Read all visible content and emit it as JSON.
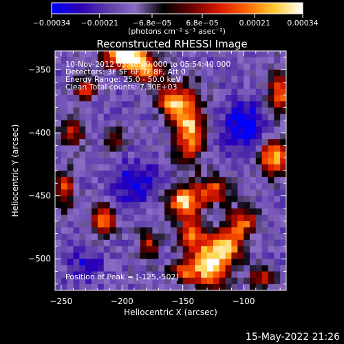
{
  "chart_data": {
    "type": "heatmap",
    "title": "Reconstructed RHESSI Image",
    "xlabel": "Heliocentric X (arcsec)",
    "ylabel": "Heliocentric Y (arcsec)",
    "xlim": [
      -255,
      -65
    ],
    "ylim": [
      -525,
      -335
    ],
    "x_ticks": [
      -250,
      -200,
      -150,
      -100
    ],
    "y_ticks": [
      -350,
      -400,
      -450,
      -500
    ],
    "x_tick_labels": [
      "−250",
      "−200",
      "−150",
      "−100"
    ],
    "y_tick_labels": [
      "−350",
      "−400",
      "−450",
      "−500"
    ],
    "colorbar": {
      "range": [
        -0.00034,
        0.00034
      ],
      "tick_values": [
        -0.00034,
        -0.00021,
        -6.8e-05,
        6.8e-05,
        0.00021,
        0.00034
      ],
      "tick_labels": [
        "−0.00034",
        "−0.00021",
        "−6.8e−05",
        "6.8e−05",
        "0.00021",
        "0.00034"
      ],
      "unit_label": "(photons cm⁻² s⁻¹ asec⁻²)",
      "stops": [
        "#0000ff",
        "#2a00b4",
        "#5a3aa8",
        "#8a6cc4",
        "#000000",
        "#6a0000",
        "#d81800",
        "#ff6600",
        "#ffcc33",
        "#ffffff"
      ]
    },
    "annotations": [
      "10-Nov-2012 05:48:40.000 to 05:54:40.000",
      "Detectors: 3F 5F 6F 7F 8F, Att 0",
      "Energy Range: 25.0 - 50.0 keV",
      "Clean     Total counts: 7.30E+03"
    ],
    "peak_label": "Position of Peak = [-125,-502]",
    "peak_position": [
      -125,
      -502
    ],
    "image": {
      "cols": 38,
      "rows": 38,
      "background": -0.00015,
      "sources": [
        {
          "x": -128,
          "y": -505,
          "sx": 10,
          "sy": 12,
          "amp": 0.00052
        },
        {
          "x": -112,
          "y": -488,
          "sx": 9,
          "sy": 10,
          "amp": 0.00035
        },
        {
          "x": -142,
          "y": -480,
          "sx": 8,
          "sy": 10,
          "amp": 0.0003
        },
        {
          "x": -150,
          "y": -455,
          "sx": 9,
          "sy": 8,
          "amp": 0.00045
        },
        {
          "x": -125,
          "y": -445,
          "sx": 10,
          "sy": 8,
          "amp": 0.0003
        },
        {
          "x": -145,
          "y": -395,
          "sx": 8,
          "sy": 20,
          "amp": 0.00042
        },
        {
          "x": -160,
          "y": -375,
          "sx": 7,
          "sy": 9,
          "amp": 0.00038
        },
        {
          "x": -195,
          "y": -340,
          "sx": 12,
          "sy": 7,
          "amp": 0.0006
        },
        {
          "x": -178,
          "y": -352,
          "sx": 8,
          "sy": 6,
          "amp": 0.00032
        },
        {
          "x": -215,
          "y": -470,
          "sx": 6,
          "sy": 8,
          "amp": 0.0004
        },
        {
          "x": -178,
          "y": -488,
          "sx": 6,
          "sy": 8,
          "amp": 0.00025
        },
        {
          "x": -150,
          "y": -510,
          "sx": 7,
          "sy": 7,
          "amp": 0.00028
        },
        {
          "x": -75,
          "y": -420,
          "sx": 8,
          "sy": 10,
          "amp": 0.00042
        },
        {
          "x": -70,
          "y": -370,
          "sx": 6,
          "sy": 12,
          "amp": 0.00035
        },
        {
          "x": -248,
          "y": -445,
          "sx": 6,
          "sy": 10,
          "amp": 0.0003
        },
        {
          "x": -240,
          "y": -400,
          "sx": 7,
          "sy": 7,
          "amp": 0.00025
        },
        {
          "x": -230,
          "y": -365,
          "sx": 7,
          "sy": 6,
          "amp": 0.0003
        },
        {
          "x": -205,
          "y": -405,
          "sx": 6,
          "sy": 6,
          "amp": 0.00022
        },
        {
          "x": -100,
          "y": -470,
          "sx": 8,
          "sy": 8,
          "amp": 0.0003
        },
        {
          "x": -85,
          "y": -515,
          "sx": 7,
          "sy": 6,
          "amp": 0.00025
        },
        {
          "x": -190,
          "y": -440,
          "sx": 12,
          "sy": 12,
          "amp": -0.00018
        },
        {
          "x": -100,
          "y": -395,
          "sx": 12,
          "sy": 14,
          "amp": -0.0002
        },
        {
          "x": -230,
          "y": -505,
          "sx": 10,
          "sy": 8,
          "amp": -0.00012
        }
      ]
    }
  },
  "footer": {
    "timestamp": "15-May-2022 21:26"
  }
}
